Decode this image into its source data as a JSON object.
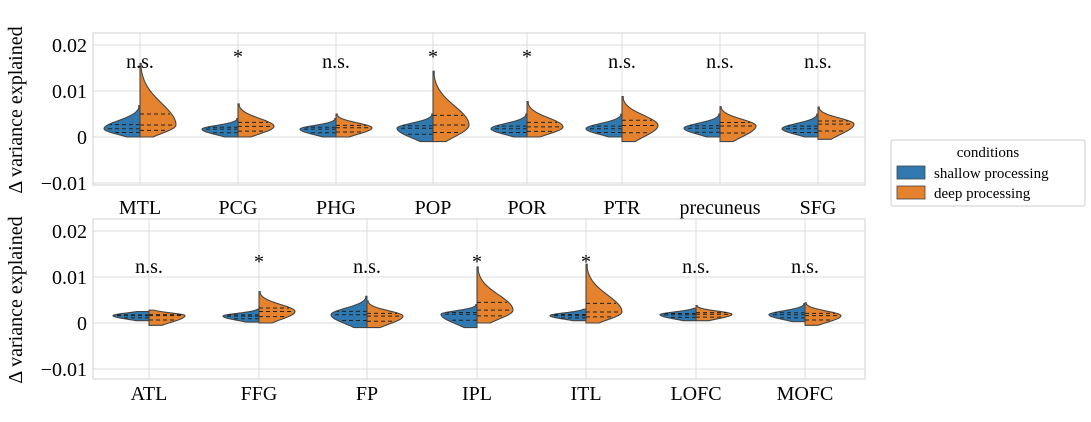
{
  "colors": {
    "shallow": "#2f78b0",
    "deep": "#e5822e"
  },
  "legend": {
    "title": "conditions",
    "items": [
      "shallow processing",
      "deep processing"
    ]
  },
  "chart_data": [
    {
      "type": "violin",
      "ylabel": "Δ variance explained",
      "ylim": [
        -0.012,
        0.023
      ],
      "yticks": [
        0.02,
        0.01,
        0,
        -0.01
      ],
      "ytick_labels": [
        "0.02",
        "0.01",
        "0",
        "−0.01"
      ],
      "grid": true,
      "categories": [
        "MTL",
        "PCG",
        "PHG",
        "POP",
        "POR",
        "PTR",
        "precuneus",
        "SFG"
      ],
      "significance": [
        "n.s.",
        "*",
        "n.s.",
        "*",
        "*",
        "n.s.",
        "n.s.",
        "n.s."
      ],
      "series": [
        {
          "name": "shallow processing",
          "min": [
            0,
            0,
            0,
            -0.001,
            0,
            0,
            0,
            0
          ],
          "max": [
            0.0068,
            0.004,
            0.004,
            0.005,
            0.005,
            0.005,
            0.005,
            0.005
          ],
          "median": [
            0.0018,
            0.0017,
            0.0017,
            0.0019,
            0.0018,
            0.0018,
            0.0019,
            0.0018
          ]
        },
        {
          "name": "deep processing",
          "min": [
            0,
            0,
            0,
            -0.001,
            0,
            -0.001,
            -0.001,
            -0.0005
          ],
          "max": [
            0.016,
            0.0072,
            0.005,
            0.0143,
            0.0077,
            0.0088,
            0.0066,
            0.0065
          ],
          "median": [
            0.0026,
            0.0023,
            0.002,
            0.0026,
            0.0022,
            0.0025,
            0.0024,
            0.0028
          ]
        }
      ]
    },
    {
      "type": "violin",
      "ylabel": "Δ variance explained",
      "ylim": [
        -0.012,
        0.023
      ],
      "yticks": [
        0.02,
        0.01,
        0,
        -0.01
      ],
      "ytick_labels": [
        "0.02",
        "0.01",
        "0",
        "−0.01"
      ],
      "grid": true,
      "categories": [
        "ATL",
        "FFG",
        "FP",
        "IPL",
        "ITL",
        "LOFC",
        "MOFC"
      ],
      "significance": [
        "n.s.",
        "*",
        "n.s.",
        "*",
        "*",
        "n.s.",
        "n.s."
      ],
      "series": [
        {
          "name": "shallow processing",
          "min": [
            0.0005,
            0.0002,
            -0.001,
            -0.001,
            0.0005,
            0.0005,
            0.0003
          ],
          "max": [
            0.0025,
            0.003,
            0.0058,
            0.004,
            0.003,
            0.0032,
            0.0042
          ],
          "median": [
            0.0016,
            0.0015,
            0.0018,
            0.0019,
            0.0016,
            0.0018,
            0.0018
          ]
        },
        {
          "name": "deep processing",
          "min": [
            -0.0005,
            0,
            -0.001,
            0,
            0,
            0.0005,
            -0.0005
          ],
          "max": [
            0.0028,
            0.0068,
            0.0048,
            0.0122,
            0.0128,
            0.0038,
            0.0044
          ],
          "median": [
            0.0016,
            0.0025,
            0.0015,
            0.0028,
            0.0024,
            0.0019,
            0.0016
          ]
        }
      ]
    }
  ]
}
